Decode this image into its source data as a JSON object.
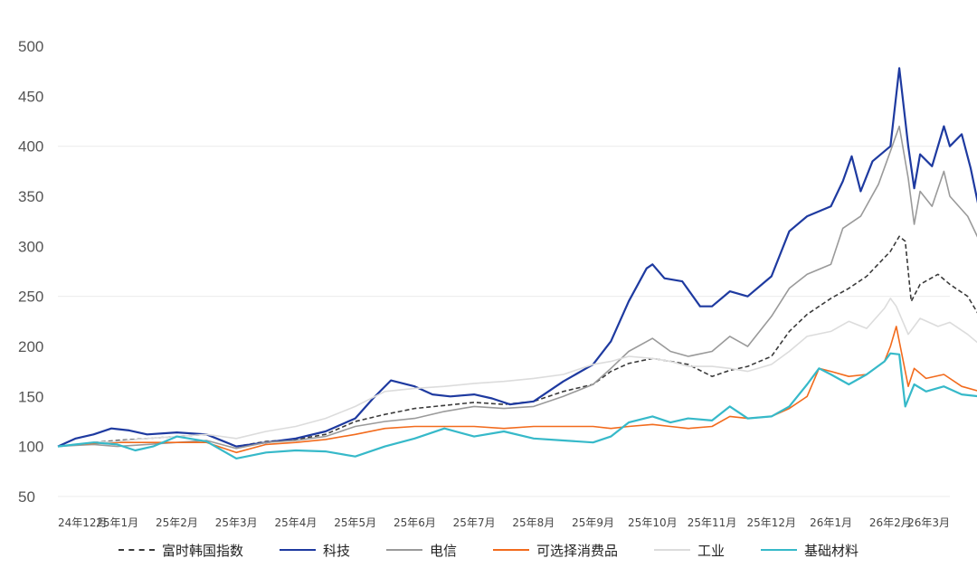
{
  "chart_data": {
    "type": "line",
    "title": "",
    "xlabel": "",
    "ylabel": "",
    "ylim": [
      40,
      510
    ],
    "yticks": [
      50,
      100,
      150,
      200,
      250,
      300,
      350,
      400,
      450,
      500
    ],
    "x_tick_labels": [
      "24年12月",
      "25年1月",
      "25年2月",
      "25年3月",
      "25年4月",
      "25年5月",
      "25年6月",
      "25年7月",
      "25年8月",
      "25年9月",
      "25年10月",
      "25年11月",
      "25年12月",
      "26年1月",
      "26年2月",
      "26年3月"
    ],
    "grid_lines_at": [
      50,
      250,
      400
    ],
    "legend_position": "bottom",
    "series": [
      {
        "name": "富时韩国指数",
        "color": "#3a3a3a",
        "style": "dashed",
        "points": [
          [
            0,
            100
          ],
          [
            0.3,
            102
          ],
          [
            0.6,
            104
          ],
          [
            1,
            106
          ],
          [
            1.5,
            108
          ],
          [
            2,
            110
          ],
          [
            2.5,
            112
          ],
          [
            3,
            100
          ],
          [
            3.5,
            105
          ],
          [
            4,
            107
          ],
          [
            4.5,
            112
          ],
          [
            5,
            125
          ],
          [
            5.5,
            132
          ],
          [
            6,
            138
          ],
          [
            6.5,
            141
          ],
          [
            7,
            144
          ],
          [
            7.5,
            142
          ],
          [
            8,
            145
          ],
          [
            8.5,
            155
          ],
          [
            9,
            162
          ],
          [
            9.3,
            175
          ],
          [
            9.6,
            183
          ],
          [
            10,
            188
          ],
          [
            10.3,
            185
          ],
          [
            10.6,
            182
          ],
          [
            11,
            170
          ],
          [
            11.3,
            176
          ],
          [
            11.6,
            180
          ],
          [
            12,
            190
          ],
          [
            12.3,
            215
          ],
          [
            12.6,
            232
          ],
          [
            13,
            248
          ],
          [
            13.3,
            258
          ],
          [
            13.6,
            270
          ],
          [
            14,
            295
          ],
          [
            14.15,
            310
          ],
          [
            14.25,
            305
          ],
          [
            14.35,
            245
          ],
          [
            14.5,
            262
          ],
          [
            14.8,
            272
          ],
          [
            15,
            262
          ],
          [
            15.3,
            250
          ],
          [
            15.5,
            230
          ],
          [
            15.7,
            270
          ],
          [
            15.85,
            282
          ],
          [
            16,
            292
          ]
        ]
      },
      {
        "name": "科技",
        "color": "#1e3aa0",
        "style": "solid",
        "points": [
          [
            0,
            100
          ],
          [
            0.3,
            108
          ],
          [
            0.6,
            112
          ],
          [
            0.9,
            118
          ],
          [
            1.2,
            116
          ],
          [
            1.5,
            112
          ],
          [
            2,
            114
          ],
          [
            2.5,
            112
          ],
          [
            3,
            100
          ],
          [
            3.5,
            104
          ],
          [
            4,
            108
          ],
          [
            4.5,
            115
          ],
          [
            5,
            128
          ],
          [
            5.3,
            148
          ],
          [
            5.6,
            166
          ],
          [
            6,
            160
          ],
          [
            6.3,
            152
          ],
          [
            6.6,
            150
          ],
          [
            7,
            152
          ],
          [
            7.3,
            148
          ],
          [
            7.6,
            142
          ],
          [
            8,
            145
          ],
          [
            8.5,
            165
          ],
          [
            9,
            182
          ],
          [
            9.3,
            205
          ],
          [
            9.6,
            245
          ],
          [
            9.9,
            278
          ],
          [
            10,
            282
          ],
          [
            10.2,
            268
          ],
          [
            10.5,
            265
          ],
          [
            10.8,
            240
          ],
          [
            11,
            240
          ],
          [
            11.3,
            255
          ],
          [
            11.6,
            250
          ],
          [
            12,
            270
          ],
          [
            12.3,
            315
          ],
          [
            12.6,
            330
          ],
          [
            13,
            340
          ],
          [
            13.2,
            365
          ],
          [
            13.35,
            390
          ],
          [
            13.5,
            355
          ],
          [
            13.7,
            385
          ],
          [
            14,
            400
          ],
          [
            14.15,
            478
          ],
          [
            14.3,
            400
          ],
          [
            14.4,
            358
          ],
          [
            14.5,
            392
          ],
          [
            14.7,
            380
          ],
          [
            14.9,
            420
          ],
          [
            15,
            400
          ],
          [
            15.2,
            412
          ],
          [
            15.35,
            378
          ],
          [
            15.5,
            335
          ],
          [
            15.65,
            368
          ],
          [
            15.8,
            420
          ],
          [
            16,
            472
          ]
        ]
      },
      {
        "name": "电信",
        "color": "#9a9a9a",
        "style": "solid",
        "points": [
          [
            0,
            100
          ],
          [
            0.3,
            101
          ],
          [
            0.6,
            102
          ],
          [
            1,
            100
          ],
          [
            1.5,
            102
          ],
          [
            2,
            104
          ],
          [
            2.5,
            106
          ],
          [
            3,
            98
          ],
          [
            3.5,
            104
          ],
          [
            4,
            106
          ],
          [
            4.5,
            110
          ],
          [
            5,
            120
          ],
          [
            5.5,
            125
          ],
          [
            6,
            128
          ],
          [
            6.5,
            135
          ],
          [
            7,
            140
          ],
          [
            7.5,
            138
          ],
          [
            8,
            140
          ],
          [
            8.5,
            150
          ],
          [
            9,
            162
          ],
          [
            9.3,
            178
          ],
          [
            9.6,
            195
          ],
          [
            10,
            208
          ],
          [
            10.3,
            195
          ],
          [
            10.6,
            190
          ],
          [
            11,
            195
          ],
          [
            11.3,
            210
          ],
          [
            11.6,
            200
          ],
          [
            12,
            230
          ],
          [
            12.3,
            258
          ],
          [
            12.6,
            272
          ],
          [
            13,
            282
          ],
          [
            13.2,
            318
          ],
          [
            13.5,
            330
          ],
          [
            13.8,
            362
          ],
          [
            14,
            395
          ],
          [
            14.15,
            420
          ],
          [
            14.3,
            368
          ],
          [
            14.4,
            322
          ],
          [
            14.5,
            355
          ],
          [
            14.7,
            340
          ],
          [
            14.9,
            375
          ],
          [
            15,
            350
          ],
          [
            15.3,
            330
          ],
          [
            15.5,
            305
          ],
          [
            15.7,
            350
          ],
          [
            15.85,
            380
          ],
          [
            16,
            396
          ]
        ]
      },
      {
        "name": "可选择消费品",
        "color": "#f26b1d",
        "style": "solid",
        "points": [
          [
            0,
            100
          ],
          [
            0.3,
            102
          ],
          [
            0.6,
            103
          ],
          [
            1,
            104
          ],
          [
            1.5,
            104
          ],
          [
            2,
            104
          ],
          [
            2.5,
            104
          ],
          [
            3,
            94
          ],
          [
            3.5,
            102
          ],
          [
            4,
            104
          ],
          [
            4.5,
            107
          ],
          [
            5,
            112
          ],
          [
            5.5,
            118
          ],
          [
            6,
            120
          ],
          [
            6.5,
            120
          ],
          [
            7,
            120
          ],
          [
            7.5,
            118
          ],
          [
            8,
            120
          ],
          [
            8.5,
            120
          ],
          [
            9,
            120
          ],
          [
            9.3,
            118
          ],
          [
            9.6,
            120
          ],
          [
            10,
            122
          ],
          [
            10.3,
            120
          ],
          [
            10.6,
            118
          ],
          [
            11,
            120
          ],
          [
            11.3,
            130
          ],
          [
            11.6,
            128
          ],
          [
            12,
            130
          ],
          [
            12.3,
            138
          ],
          [
            12.6,
            150
          ],
          [
            12.8,
            178
          ],
          [
            13,
            175
          ],
          [
            13.3,
            170
          ],
          [
            13.6,
            172
          ],
          [
            13.9,
            185
          ],
          [
            14,
            200
          ],
          [
            14.1,
            220
          ],
          [
            14.2,
            190
          ],
          [
            14.3,
            160
          ],
          [
            14.4,
            178
          ],
          [
            14.6,
            168
          ],
          [
            14.9,
            172
          ],
          [
            15.2,
            160
          ],
          [
            15.5,
            155
          ],
          [
            15.8,
            162
          ],
          [
            16,
            170
          ]
        ]
      },
      {
        "name": "工业",
        "color": "#dcdcdc",
        "style": "solid",
        "points": [
          [
            0,
            100
          ],
          [
            0.3,
            102
          ],
          [
            0.6,
            104
          ],
          [
            1,
            105
          ],
          [
            1.5,
            108
          ],
          [
            2,
            110
          ],
          [
            2.5,
            112
          ],
          [
            3,
            108
          ],
          [
            3.5,
            115
          ],
          [
            4,
            120
          ],
          [
            4.5,
            128
          ],
          [
            5,
            140
          ],
          [
            5.5,
            155
          ],
          [
            6,
            158
          ],
          [
            6.5,
            160
          ],
          [
            7,
            163
          ],
          [
            7.5,
            165
          ],
          [
            8,
            168
          ],
          [
            8.5,
            172
          ],
          [
            9,
            182
          ],
          [
            9.3,
            185
          ],
          [
            9.6,
            190
          ],
          [
            10,
            188
          ],
          [
            10.3,
            185
          ],
          [
            10.6,
            180
          ],
          [
            11,
            180
          ],
          [
            11.3,
            178
          ],
          [
            11.6,
            175
          ],
          [
            12,
            182
          ],
          [
            12.3,
            195
          ],
          [
            12.6,
            210
          ],
          [
            13,
            215
          ],
          [
            13.3,
            225
          ],
          [
            13.6,
            218
          ],
          [
            13.9,
            238
          ],
          [
            14,
            248
          ],
          [
            14.1,
            240
          ],
          [
            14.3,
            212
          ],
          [
            14.5,
            228
          ],
          [
            14.8,
            220
          ],
          [
            15,
            224
          ],
          [
            15.3,
            212
          ],
          [
            15.5,
            202
          ],
          [
            15.7,
            222
          ],
          [
            15.85,
            232
          ],
          [
            16,
            240
          ]
        ]
      },
      {
        "name": "基础材料",
        "color": "#36b9c9",
        "style": "solid",
        "points": [
          [
            0,
            100
          ],
          [
            0.3,
            102
          ],
          [
            0.6,
            104
          ],
          [
            1,
            102
          ],
          [
            1.3,
            96
          ],
          [
            1.6,
            100
          ],
          [
            2,
            110
          ],
          [
            2.5,
            105
          ],
          [
            3,
            88
          ],
          [
            3.5,
            94
          ],
          [
            4,
            96
          ],
          [
            4.5,
            95
          ],
          [
            5,
            90
          ],
          [
            5.5,
            100
          ],
          [
            6,
            108
          ],
          [
            6.5,
            118
          ],
          [
            7,
            110
          ],
          [
            7.5,
            115
          ],
          [
            8,
            108
          ],
          [
            8.5,
            106
          ],
          [
            9,
            104
          ],
          [
            9.3,
            110
          ],
          [
            9.6,
            124
          ],
          [
            10,
            130
          ],
          [
            10.3,
            124
          ],
          [
            10.6,
            128
          ],
          [
            11,
            126
          ],
          [
            11.3,
            140
          ],
          [
            11.6,
            128
          ],
          [
            12,
            130
          ],
          [
            12.3,
            140
          ],
          [
            12.6,
            162
          ],
          [
            12.8,
            178
          ],
          [
            13,
            172
          ],
          [
            13.3,
            162
          ],
          [
            13.6,
            172
          ],
          [
            13.9,
            185
          ],
          [
            14,
            193
          ],
          [
            14.15,
            192
          ],
          [
            14.25,
            140
          ],
          [
            14.4,
            162
          ],
          [
            14.6,
            155
          ],
          [
            14.9,
            160
          ],
          [
            15.2,
            152
          ],
          [
            15.5,
            150
          ],
          [
            15.7,
            158
          ],
          [
            15.85,
            165
          ],
          [
            16,
            166
          ]
        ]
      }
    ]
  }
}
